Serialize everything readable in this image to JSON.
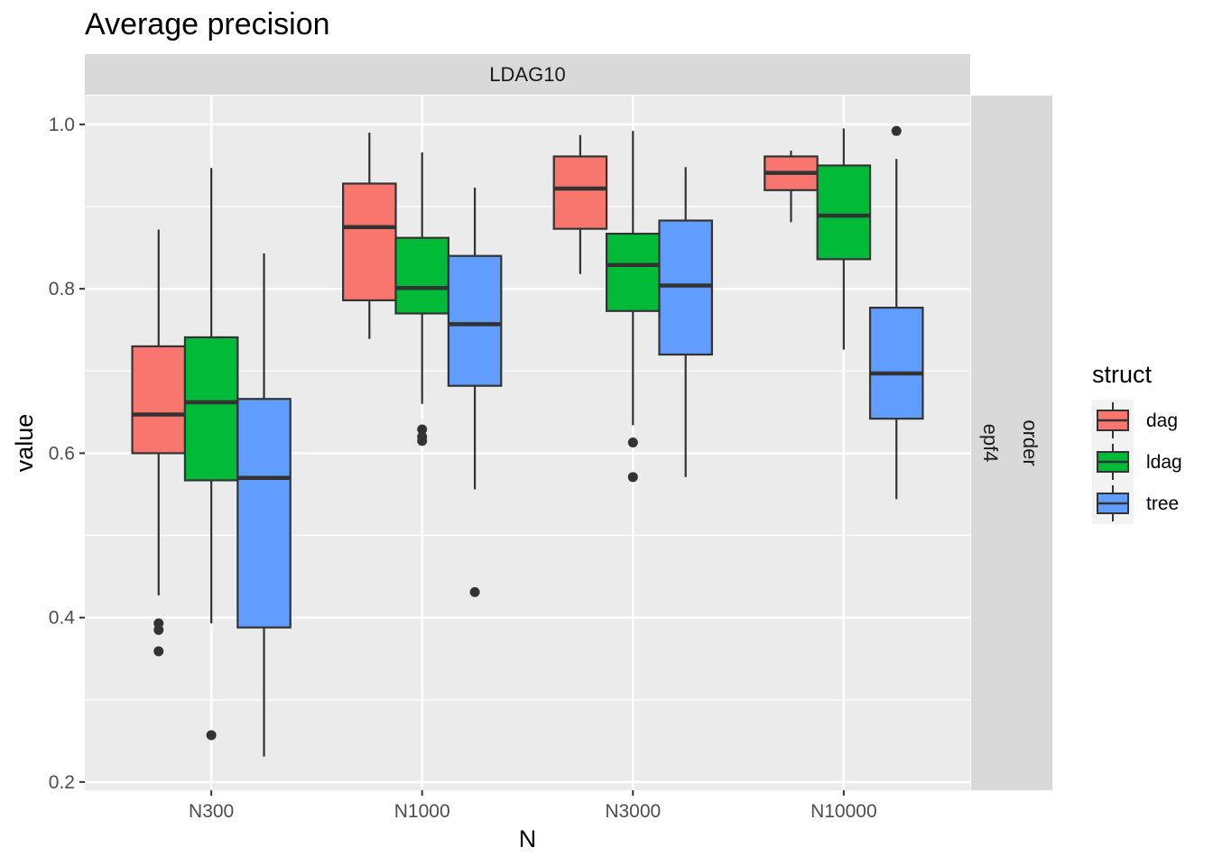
{
  "chart_data": {
    "type": "box",
    "title": "Average precision",
    "xlabel": "N",
    "ylabel": "value",
    "categories": [
      "N300",
      "N1000",
      "N3000",
      "N10000"
    ],
    "ylim": [
      0.19,
      1.035
    ],
    "y_ticks": [
      0.2,
      0.4,
      0.6,
      0.8,
      1.0
    ],
    "y_tick_labels": [
      "0.2",
      "0.4",
      "0.6",
      "0.8",
      "1.0"
    ],
    "grid": true,
    "facet_top_label": "LDAG10",
    "facet_right_labels": [
      "order",
      "epf4"
    ],
    "legend": {
      "title": "struct",
      "position": "right",
      "entries": [
        "dag",
        "ldag",
        "tree"
      ]
    },
    "series": [
      {
        "name": "dag",
        "color": "#F8766D",
        "boxes": [
          {
            "category": "N300",
            "whisker_low": 0.427,
            "q1": 0.6,
            "median": 0.647,
            "q3": 0.73,
            "whisker_high": 0.872,
            "outliers": [
              0.393,
              0.385,
              0.359
            ]
          },
          {
            "category": "N1000",
            "whisker_low": 0.739,
            "q1": 0.786,
            "median": 0.875,
            "q3": 0.928,
            "whisker_high": 0.99,
            "outliers": []
          },
          {
            "category": "N3000",
            "whisker_low": 0.818,
            "q1": 0.873,
            "median": 0.922,
            "q3": 0.961,
            "whisker_high": 0.987,
            "outliers": []
          },
          {
            "category": "N10000",
            "whisker_low": 0.881,
            "q1": 0.92,
            "median": 0.941,
            "q3": 0.961,
            "whisker_high": 0.968,
            "outliers": []
          }
        ]
      },
      {
        "name": "ldag",
        "color": "#00BA38",
        "boxes": [
          {
            "category": "N300",
            "whisker_low": 0.393,
            "q1": 0.567,
            "median": 0.662,
            "q3": 0.741,
            "whisker_high": 0.947,
            "outliers": [
              0.257
            ]
          },
          {
            "category": "N1000",
            "whisker_low": 0.66,
            "q1": 0.77,
            "median": 0.801,
            "q3": 0.862,
            "whisker_high": 0.966,
            "outliers": [
              0.629,
              0.62,
              0.615
            ]
          },
          {
            "category": "N3000",
            "whisker_low": 0.634,
            "q1": 0.773,
            "median": 0.829,
            "q3": 0.867,
            "whisker_high": 0.992,
            "outliers": [
              0.613,
              0.571
            ]
          },
          {
            "category": "N10000",
            "whisker_low": 0.726,
            "q1": 0.836,
            "median": 0.889,
            "q3": 0.95,
            "whisker_high": 0.995,
            "outliers": []
          }
        ]
      },
      {
        "name": "tree",
        "color": "#619CFF",
        "boxes": [
          {
            "category": "N300",
            "whisker_low": 0.231,
            "q1": 0.388,
            "median": 0.57,
            "q3": 0.666,
            "whisker_high": 0.843,
            "outliers": []
          },
          {
            "category": "N1000",
            "whisker_low": 0.556,
            "q1": 0.682,
            "median": 0.757,
            "q3": 0.84,
            "whisker_high": 0.923,
            "outliers": [
              0.431
            ]
          },
          {
            "category": "N3000",
            "whisker_low": 0.571,
            "q1": 0.72,
            "median": 0.804,
            "q3": 0.883,
            "whisker_high": 0.948,
            "outliers": []
          },
          {
            "category": "N10000",
            "whisker_low": 0.544,
            "q1": 0.642,
            "median": 0.697,
            "q3": 0.777,
            "whisker_high": 0.958,
            "outliers": [
              0.992
            ]
          }
        ]
      }
    ]
  }
}
